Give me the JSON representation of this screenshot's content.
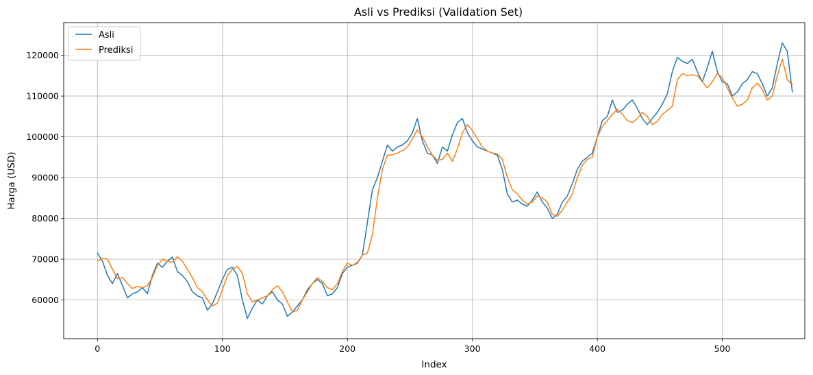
{
  "chart_data": {
    "type": "line",
    "title": "Asli vs Prediksi (Validation Set)",
    "xlabel": "Index",
    "ylabel": "Harga (USD)",
    "xlim": [
      -27,
      566
    ],
    "ylim": [
      50500,
      128000
    ],
    "xticks": [
      0,
      100,
      200,
      300,
      400,
      500
    ],
    "yticks": [
      60000,
      70000,
      80000,
      90000,
      100000,
      110000,
      120000
    ],
    "grid": true,
    "legend_position": "top-left",
    "series": [
      {
        "name": "Asli",
        "color": "#1f77b4",
        "x": [
          0,
          4,
          8,
          12,
          16,
          20,
          24,
          28,
          32,
          36,
          40,
          44,
          48,
          52,
          56,
          60,
          64,
          68,
          72,
          76,
          80,
          84,
          88,
          92,
          96,
          100,
          104,
          108,
          112,
          116,
          120,
          124,
          128,
          132,
          136,
          140,
          144,
          148,
          152,
          156,
          160,
          164,
          168,
          172,
          176,
          180,
          184,
          188,
          192,
          196,
          200,
          204,
          208,
          212,
          216,
          220,
          224,
          228,
          232,
          236,
          240,
          244,
          248,
          252,
          256,
          260,
          264,
          268,
          272,
          276,
          280,
          284,
          288,
          292,
          296,
          300,
          304,
          308,
          312,
          316,
          320,
          324,
          328,
          332,
          336,
          340,
          344,
          348,
          352,
          356,
          360,
          364,
          368,
          372,
          376,
          380,
          384,
          388,
          392,
          396,
          400,
          404,
          408,
          412,
          416,
          420,
          424,
          428,
          432,
          436,
          440,
          444,
          448,
          452,
          456,
          460,
          464,
          468,
          472,
          476,
          480,
          484,
          488,
          492,
          496,
          500,
          504,
          508,
          512,
          516,
          520,
          524,
          528,
          532,
          536,
          540,
          544,
          548,
          552,
          556
        ],
        "values": [
          71500,
          69500,
          66000,
          64000,
          66500,
          63500,
          60500,
          61500,
          62000,
          63000,
          61500,
          66000,
          69000,
          68000,
          69500,
          70500,
          67000,
          66000,
          64500,
          62000,
          61000,
          60500,
          57500,
          59000,
          62000,
          65000,
          67500,
          68000,
          66000,
          60000,
          55500,
          58000,
          60000,
          59000,
          61000,
          62000,
          60000,
          59000,
          56000,
          57000,
          58500,
          60000,
          62500,
          64000,
          65000,
          64000,
          61000,
          61500,
          63000,
          66500,
          68000,
          68500,
          69000,
          71000,
          79000,
          87000,
          90000,
          94000,
          98000,
          96500,
          97500,
          98000,
          99000,
          101000,
          104500,
          99000,
          96000,
          95500,
          93500,
          97500,
          96500,
          100500,
          103500,
          104500,
          101000,
          99000,
          97500,
          97000,
          96500,
          96000,
          95500,
          92000,
          86000,
          84000,
          84500,
          83500,
          83000,
          84500,
          86500,
          84000,
          82500,
          80000,
          81000,
          84000,
          85500,
          88500,
          92000,
          94000,
          95000,
          96000,
          100000,
          104000,
          105000,
          109000,
          106000,
          106500,
          108000,
          109000,
          107000,
          104500,
          103000,
          104500,
          106000,
          108000,
          110500,
          116000,
          119500,
          118500,
          118000,
          119000,
          116000,
          113500,
          117000,
          121000,
          116000,
          113500,
          113000,
          110000,
          111000,
          113000,
          114000,
          116000,
          115500,
          113000,
          110000,
          112000,
          118000,
          123000,
          121000,
          111000
        ]
      },
      {
        "name": "Prediksi",
        "color": "#ff7f0e",
        "x": [
          0,
          4,
          8,
          12,
          16,
          20,
          24,
          28,
          32,
          36,
          40,
          44,
          48,
          52,
          56,
          60,
          64,
          68,
          72,
          76,
          80,
          84,
          88,
          92,
          96,
          100,
          104,
          108,
          112,
          116,
          120,
          124,
          128,
          132,
          136,
          140,
          144,
          148,
          152,
          156,
          160,
          164,
          168,
          172,
          176,
          180,
          184,
          188,
          192,
          196,
          200,
          204,
          208,
          212,
          216,
          220,
          224,
          228,
          232,
          236,
          240,
          244,
          248,
          252,
          256,
          260,
          264,
          268,
          272,
          276,
          280,
          284,
          288,
          292,
          296,
          300,
          304,
          308,
          312,
          316,
          320,
          324,
          328,
          332,
          336,
          340,
          344,
          348,
          352,
          356,
          360,
          364,
          368,
          372,
          376,
          380,
          384,
          388,
          392,
          396,
          400,
          404,
          408,
          412,
          416,
          420,
          424,
          428,
          432,
          436,
          440,
          444,
          448,
          452,
          456,
          460,
          464,
          468,
          472,
          476,
          480,
          484,
          488,
          492,
          496,
          500,
          504,
          508,
          512,
          516,
          520,
          524,
          528,
          532,
          536,
          540,
          544,
          548,
          552,
          556
        ],
        "values": [
          69500,
          70200,
          70000,
          67500,
          65200,
          65500,
          64000,
          62800,
          63300,
          63000,
          63500,
          65500,
          68500,
          70000,
          69500,
          69200,
          70600,
          69500,
          67500,
          65500,
          63000,
          62000,
          60000,
          58500,
          59200,
          62500,
          66000,
          67500,
          68200,
          66500,
          61500,
          59500,
          60000,
          60500,
          61000,
          62500,
          63500,
          62000,
          59500,
          57000,
          57500,
          60000,
          62000,
          64000,
          65500,
          64500,
          63000,
          62500,
          64000,
          67000,
          69000,
          68500,
          69200,
          71000,
          71500,
          76000,
          85000,
          92000,
          95500,
          95600,
          96000,
          96600,
          97500,
          99500,
          101700,
          100000,
          97500,
          95500,
          94200,
          94500,
          96000,
          94000,
          97000,
          101000,
          103000,
          101500,
          99500,
          97500,
          96500,
          96000,
          95800,
          94500,
          90000,
          87000,
          86000,
          84500,
          83500,
          84000,
          85500,
          85000,
          84000,
          81000,
          80500,
          82000,
          84000,
          86000,
          90000,
          93000,
          94500,
          95000,
          100000,
          102500,
          104000,
          105500,
          106800,
          105500,
          104000,
          103500,
          104500,
          106000,
          105000,
          103000,
          103800,
          105500,
          106500,
          107500,
          114000,
          115500,
          115000,
          115200,
          115000,
          113500,
          112000,
          113500,
          115500,
          114500,
          112000,
          109500,
          107500,
          108000,
          109000,
          112000,
          113200,
          111500,
          109000,
          110000,
          115000,
          119000,
          114000,
          112800
        ]
      }
    ]
  }
}
